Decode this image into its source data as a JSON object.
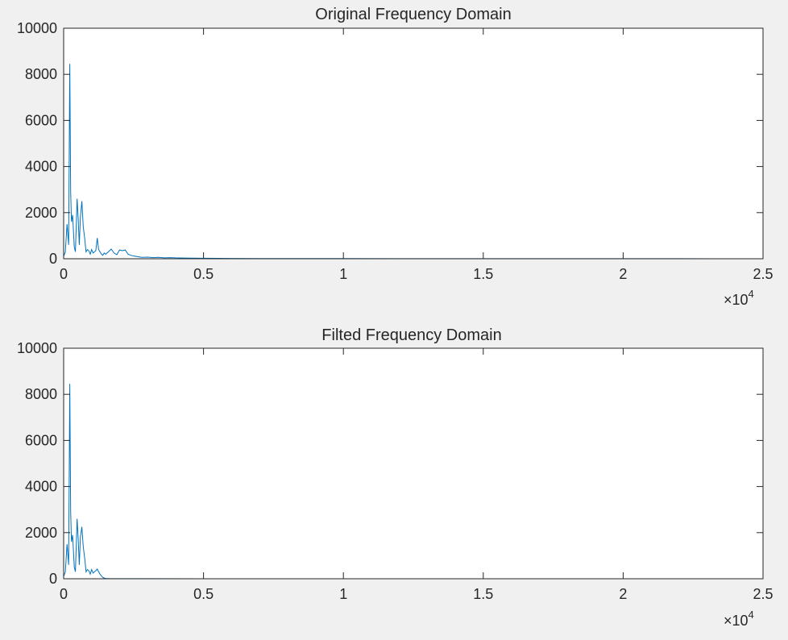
{
  "figure": {
    "background_color": "#f0f0f0",
    "axes_color": "#ffffff",
    "axis_line_color": "#262626",
    "line_color": "#0072bd"
  },
  "chart_data": [
    {
      "type": "line",
      "title": "Original Frequency Domain",
      "xlabel": "",
      "ylabel": "",
      "xlim": [
        0,
        25000
      ],
      "ylim": [
        0,
        10000
      ],
      "x_ticks": [
        "0",
        "0.5",
        "1",
        "1.5",
        "2",
        "2.5"
      ],
      "x_tick_values": [
        0,
        5000,
        10000,
        15000,
        20000,
        25000
      ],
      "x_exponent_label": "×10",
      "x_exponent_power": "4",
      "y_ticks": [
        "0",
        "2000",
        "4000",
        "6000",
        "8000",
        "10000"
      ],
      "y_tick_values": [
        0,
        2000,
        4000,
        6000,
        8000,
        10000
      ],
      "grid": false,
      "legend": "none",
      "series": [
        {
          "color": "#0072bd",
          "x": [
            0,
            60,
            120,
            180,
            220,
            250,
            280,
            320,
            380,
            420,
            480,
            520,
            560,
            600,
            650,
            700,
            760,
            800,
            850,
            900,
            950,
            1000,
            1050,
            1100,
            1150,
            1200,
            1250,
            1300,
            1350,
            1400,
            1450,
            1500,
            1600,
            1700,
            1800,
            1900,
            2000,
            2100,
            2200,
            2300,
            2400,
            2500,
            2600,
            2700,
            2800,
            3000,
            3200,
            3400,
            3600,
            3800,
            4000,
            4300,
            4600,
            5000,
            6000,
            7000,
            8000,
            9000,
            10000,
            12000,
            14000,
            16000,
            18000,
            20000,
            22000,
            24000
          ],
          "y": [
            100,
            300,
            1500,
            600,
            8450,
            2900,
            1600,
            1900,
            500,
            300,
            2600,
            1700,
            600,
            1800,
            2500,
            1400,
            800,
            300,
            400,
            350,
            200,
            400,
            250,
            300,
            350,
            900,
            400,
            300,
            200,
            150,
            250,
            200,
            300,
            420,
            250,
            180,
            380,
            350,
            380,
            200,
            150,
            120,
            100,
            80,
            60,
            70,
            50,
            60,
            40,
            50,
            40,
            30,
            25,
            20,
            15,
            10,
            10,
            8,
            6,
            5,
            4,
            3,
            3,
            2,
            2,
            0
          ]
        }
      ]
    },
    {
      "type": "line",
      "title": "Filted Frequency Domain",
      "xlabel": "",
      "ylabel": "",
      "xlim": [
        0,
        25000
      ],
      "ylim": [
        0,
        10000
      ],
      "x_ticks": [
        "0",
        "0.5",
        "1",
        "1.5",
        "2",
        "2.5"
      ],
      "x_tick_values": [
        0,
        5000,
        10000,
        15000,
        20000,
        25000
      ],
      "x_exponent_label": "×10",
      "x_exponent_power": "4",
      "y_ticks": [
        "0",
        "2000",
        "4000",
        "6000",
        "8000",
        "10000"
      ],
      "y_tick_values": [
        0,
        2000,
        4000,
        6000,
        8000,
        10000
      ],
      "grid": false,
      "legend": "none",
      "series": [
        {
          "color": "#0072bd",
          "x": [
            0,
            60,
            120,
            180,
            220,
            250,
            280,
            320,
            380,
            420,
            480,
            520,
            560,
            600,
            650,
            700,
            760,
            800,
            850,
            900,
            950,
            1000,
            1050,
            1100,
            1150,
            1200,
            1250,
            1300,
            1350,
            1400,
            1450,
            1500,
            1600,
            1800,
            2000,
            3000,
            5000,
            10000,
            15000,
            20000,
            24000
          ],
          "y": [
            100,
            300,
            1500,
            600,
            8450,
            2900,
            1600,
            1900,
            500,
            300,
            2600,
            1700,
            600,
            1800,
            2250,
            1400,
            800,
            300,
            400,
            350,
            200,
            400,
            250,
            300,
            350,
            420,
            300,
            200,
            120,
            60,
            30,
            15,
            8,
            5,
            3,
            2,
            1,
            1,
            1,
            1,
            0
          ]
        }
      ]
    }
  ]
}
